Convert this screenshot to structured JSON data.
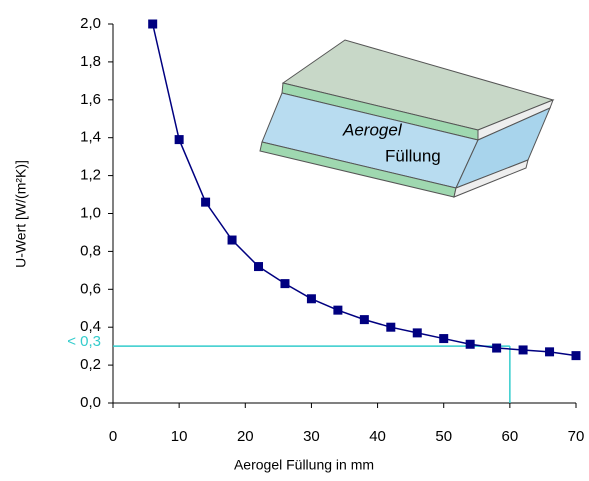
{
  "chart_data": {
    "type": "line",
    "x_label": "Aerogel Füllung in mm",
    "y_label": "U-Wert  [W/(m²K)]",
    "x": [
      6,
      10,
      14,
      18,
      22,
      26,
      30,
      34,
      38,
      42,
      46,
      50,
      54,
      58,
      62,
      66,
      70
    ],
    "values": [
      2.0,
      1.39,
      1.06,
      0.86,
      0.72,
      0.63,
      0.55,
      0.49,
      0.44,
      0.4,
      0.37,
      0.34,
      0.31,
      0.29,
      0.28,
      0.27,
      0.25
    ],
    "color": "#000080",
    "xlim": [
      0,
      70
    ],
    "xticks": [
      0,
      10,
      20,
      30,
      40,
      50,
      60,
      70
    ],
    "ylim": [
      0,
      2
    ],
    "yticks": [
      {
        "value": 0,
        "label": "0,0"
      },
      {
        "value": 0.2,
        "label": "0,2"
      },
      {
        "value": 0.4,
        "label": "0,4"
      },
      {
        "value": 0.6,
        "label": "0,6"
      },
      {
        "value": 0.8,
        "label": "0,8"
      },
      {
        "value": 1.0,
        "label": "1,0"
      },
      {
        "value": 1.2,
        "label": "1,2"
      },
      {
        "value": 1.4,
        "label": "1,4"
      },
      {
        "value": 1.6,
        "label": "1,6"
      },
      {
        "value": 1.8,
        "label": "1,8"
      },
      {
        "value": 2.0,
        "label": "2,0"
      }
    ],
    "annotation": {
      "label": "< 0,3",
      "x": 60,
      "y": 0.3,
      "color": "#33cccc"
    }
  },
  "illustration": {
    "labels": [
      "Aerogel",
      "Füllung"
    ]
  }
}
